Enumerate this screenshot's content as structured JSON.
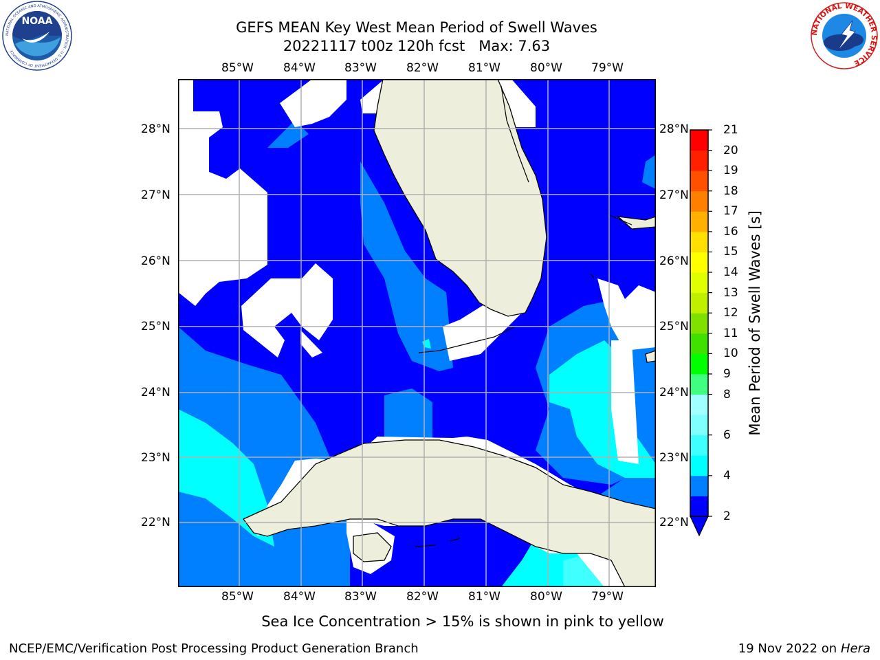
{
  "title": {
    "line1": "GEFS MEAN Key West Mean Period of Swell Waves",
    "line2": "20221117 t00z 120h fcst   Max: 7.63"
  },
  "map": {
    "lon_ticks": [
      "85°W",
      "84°W",
      "83°W",
      "82°W",
      "81°W",
      "80°W",
      "79°W"
    ],
    "lat_ticks": [
      "28°N",
      "27°N",
      "26°N",
      "25°N",
      "24°N",
      "23°N",
      "22°N"
    ],
    "extent": {
      "lon": [
        -86.0,
        -78.25
      ],
      "lat": [
        21.05,
        28.75
      ]
    },
    "colors": {
      "land": "#eeeedd",
      "no_data": "#ffffff",
      "grid": "#b0b0b0",
      "coast": "#000000"
    }
  },
  "colorbar": {
    "label": "Mean Period of Swell Waves [s]",
    "levels": [
      2,
      3,
      4,
      5,
      6,
      7,
      8,
      9,
      10,
      11,
      12,
      13,
      14,
      15,
      16,
      17,
      18,
      19,
      20,
      21
    ],
    "tick_labels": [
      "21",
      "20",
      "19",
      "18",
      "17",
      "16",
      "15",
      "14",
      "13",
      "12",
      "11",
      "10",
      "9",
      "8",
      "6",
      "4",
      "2"
    ],
    "colors": [
      "#0000ff",
      "#0080ff",
      "#00ffff",
      "#40ffff",
      "#80ffff",
      "#a0ffff",
      "#40ff80",
      "#00ff00",
      "#40e000",
      "#80e000",
      "#c0f000",
      "#e0ff00",
      "#ffff00",
      "#ffe000",
      "#ffb000",
      "#ff8000",
      "#ff5000",
      "#ff2000",
      "#ff0000"
    ],
    "under_color": "#0000ff"
  },
  "logos": {
    "noaa_text": "NOAA",
    "noaa_ring": "NATIONAL OCEANIC AND ATMOSPHERIC ADMINISTRATION · U.S. DEPARTMENT OF COMMERCE",
    "nws_ring": "NATIONAL WEATHER SERVICE"
  },
  "footer": {
    "note": "Sea Ice Concentration > 15% is shown in pink to yellow",
    "left": "NCEP/EMC/Verification Post Processing Product Generation Branch",
    "date": "19 Nov 2022 on",
    "machine": "Hera"
  }
}
